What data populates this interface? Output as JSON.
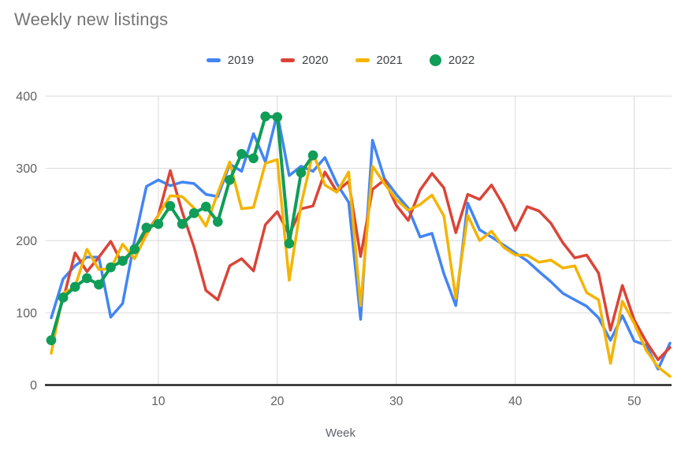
{
  "chart_data": {
    "type": "line",
    "title": "Weekly new listings",
    "xlabel": "Week",
    "x": "weeks 1-53",
    "x_ticks": [
      10,
      20,
      30,
      40,
      50
    ],
    "y_ticks": [
      0,
      100,
      200,
      300,
      400
    ],
    "xlim": [
      1,
      53
    ],
    "ylim": [
      0,
      400
    ],
    "grid": true,
    "legend_position": "top",
    "series": [
      {
        "name": "2019",
        "color": "#4285F4",
        "marker": "none",
        "values": [
          93,
          147,
          165,
          177,
          177,
          94,
          113,
          200,
          275,
          284,
          276,
          281,
          279,
          264,
          261,
          306,
          296,
          348,
          309,
          376,
          290,
          303,
          296,
          315,
          279,
          253,
          91,
          339,
          286,
          264,
          245,
          205,
          210,
          154,
          110,
          252,
          215,
          205,
          194,
          183,
          172,
          157,
          143,
          127,
          118,
          109,
          93,
          62,
          96,
          61,
          55,
          22,
          58
        ]
      },
      {
        "name": "2020",
        "color": "#DB4437",
        "marker": "none",
        "values": [
          null,
          118,
          183,
          157,
          177,
          199,
          167,
          190,
          211,
          235,
          297,
          240,
          191,
          131,
          118,
          165,
          175,
          158,
          222,
          240,
          208,
          244,
          248,
          295,
          268,
          282,
          178,
          271,
          284,
          249,
          228,
          270,
          293,
          273,
          211,
          264,
          257,
          277,
          249,
          214,
          247,
          241,
          224,
          197,
          176,
          180,
          155,
          76,
          138,
          90,
          60,
          35,
          52
        ]
      },
      {
        "name": "2021",
        "color": "#F4B400",
        "marker": "none",
        "values": [
          44,
          127,
          136,
          188,
          160,
          161,
          195,
          175,
          208,
          235,
          262,
          261,
          245,
          220,
          266,
          309,
          244,
          246,
          307,
          312,
          145,
          250,
          322,
          277,
          267,
          295,
          110,
          303,
          279,
          257,
          242,
          250,
          263,
          234,
          120,
          235,
          200,
          213,
          191,
          180,
          180,
          170,
          173,
          162,
          165,
          128,
          118,
          30,
          116,
          85,
          48,
          25,
          12
        ]
      },
      {
        "name": "2022",
        "color": "#0F9D58",
        "marker": "circle",
        "values": [
          62,
          121,
          136,
          148,
          139,
          163,
          172,
          188,
          218,
          223,
          248,
          223,
          238,
          247,
          226,
          284,
          320,
          314,
          372,
          371,
          196,
          294,
          318,
          null,
          null,
          null,
          null,
          null,
          null,
          null,
          null,
          null,
          null,
          null,
          null,
          null,
          null,
          null,
          null,
          null,
          null,
          null,
          null,
          null,
          null,
          null,
          null,
          null,
          null,
          null,
          null,
          null,
          null
        ]
      }
    ],
    "colors": {
      "title_text": "#757575",
      "legend_text": "#3c4043",
      "tick_text": "#616161",
      "axis_title_text": "#5f6368",
      "gridline": "#d9d9d9",
      "axis_line": "#212121",
      "background": "#ffffff"
    }
  }
}
